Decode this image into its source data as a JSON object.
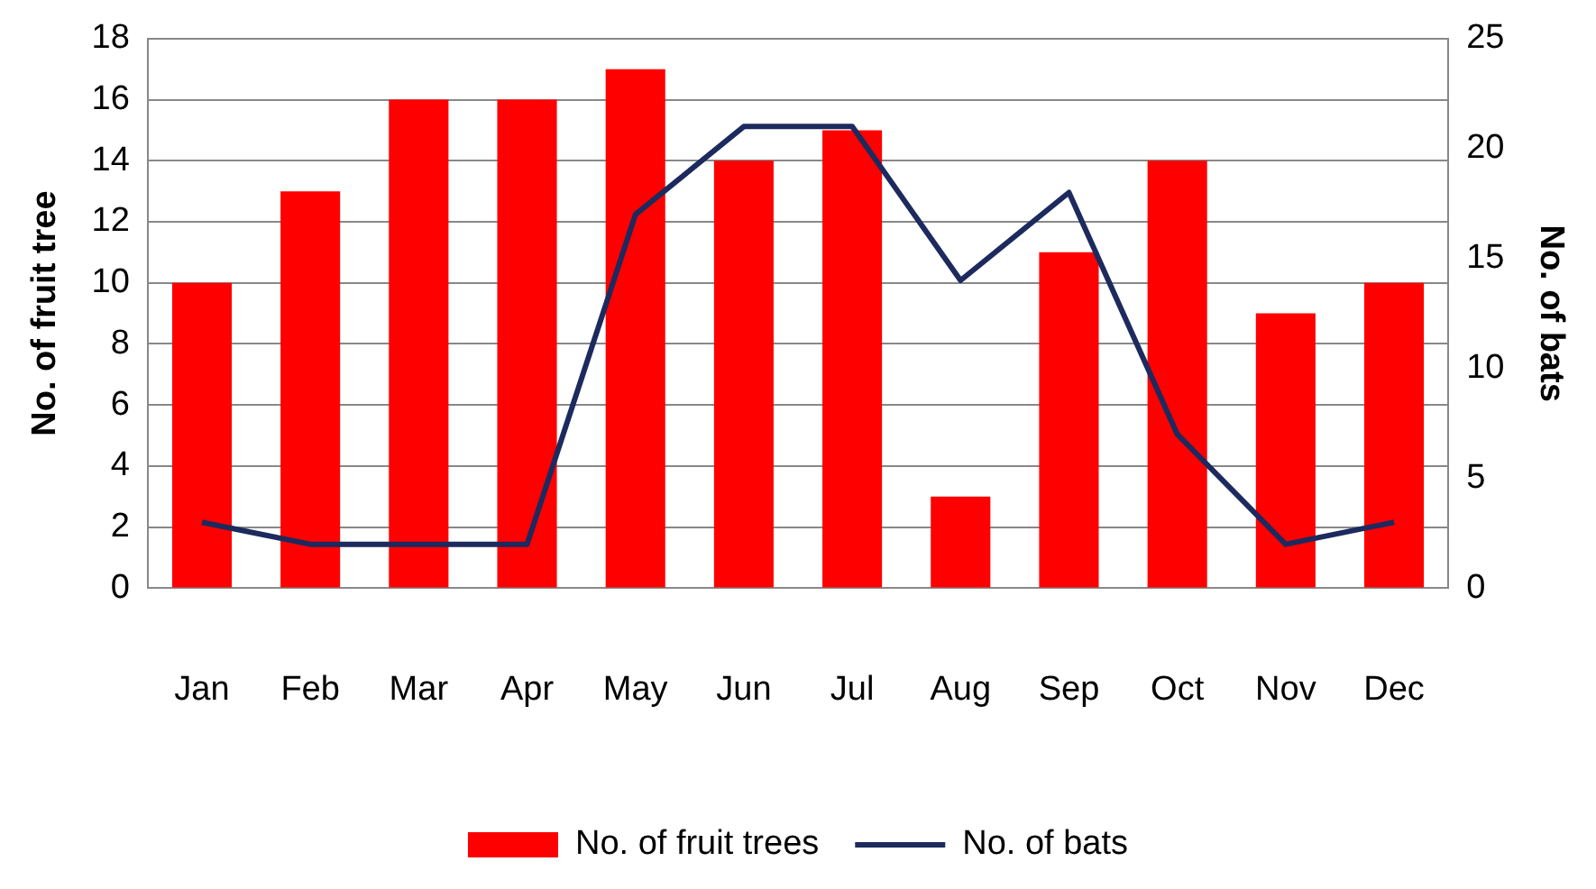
{
  "chart_data": {
    "type": "bar",
    "categories": [
      "Jan",
      "Feb",
      "Mar",
      "Apr",
      "May",
      "Jun",
      "Jul",
      "Aug",
      "Sep",
      "Oct",
      "Nov",
      "Dec"
    ],
    "series": [
      {
        "name": "No. of fruit trees",
        "color": "#ff0000",
        "values": [
          10,
          13,
          16,
          16,
          17,
          14,
          15,
          3,
          11,
          14,
          9,
          10
        ]
      },
      {
        "name": "No. of bats",
        "type": "line",
        "axis": "y2",
        "color": "#1c2a5e",
        "values": [
          3,
          2,
          2,
          2,
          17,
          21,
          21,
          14,
          18,
          7,
          2,
          3
        ]
      }
    ],
    "ylabel": "No. of fruit tree",
    "y2label": "No. of bats",
    "ylim": [
      0,
      18
    ],
    "yticks": [
      0,
      2,
      4,
      6,
      8,
      10,
      12,
      14,
      16,
      18
    ],
    "y2lim": [
      0,
      25
    ],
    "y2ticks": [
      0,
      5,
      10,
      15,
      20,
      25
    ],
    "grid": "y",
    "legend": "bottom",
    "marker": "none",
    "line_style": "solid"
  }
}
